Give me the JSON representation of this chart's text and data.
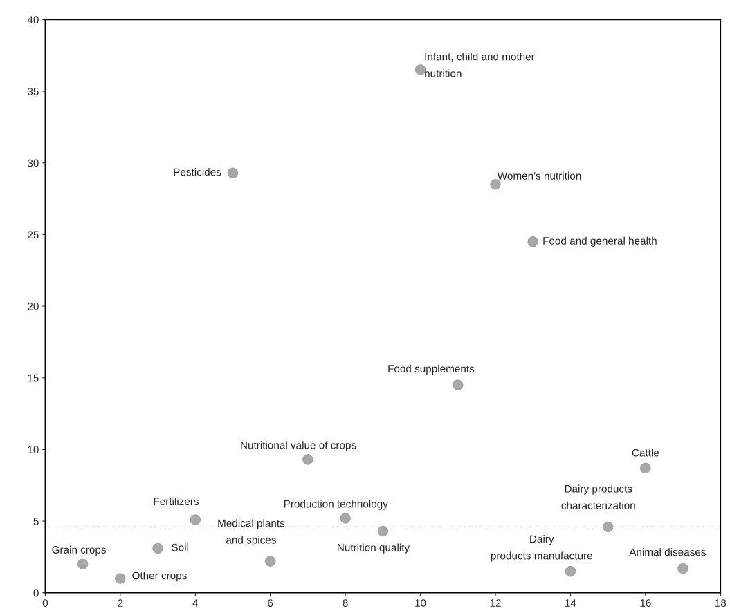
{
  "chart_data": {
    "type": "scatter",
    "x": [
      1,
      2,
      3,
      4,
      5,
      6,
      7,
      8,
      9,
      10,
      11,
      12,
      13,
      14,
      15,
      16,
      17
    ],
    "series": [
      {
        "color": "#a8a8a8",
        "values": [
          2.0,
          1.0,
          3.1,
          5.1,
          29.3,
          2.2,
          9.3,
          5.2,
          4.3,
          36.5,
          14.5,
          28.5,
          24.5,
          1.5,
          4.6,
          8.7,
          1.7
        ]
      }
    ],
    "annotations": [
      {
        "text": "Grain crops",
        "x": 1,
        "y": 2.0
      },
      {
        "text": "Other crops",
        "x": 2,
        "y": 1.0
      },
      {
        "text": "Soil",
        "x": 3,
        "y": 3.1
      },
      {
        "text": "Fertilizers",
        "x": 4,
        "y": 5.1
      },
      {
        "text": "Pesticides",
        "x": 5,
        "y": 29.3
      },
      {
        "text": "Medical plants\nand spices",
        "x": 6,
        "y": 2.2
      },
      {
        "text": "Nutritional value of crops",
        "x": 7,
        "y": 9.3
      },
      {
        "text": "Production technology",
        "x": 8,
        "y": 5.2
      },
      {
        "text": "Nutrition quality",
        "x": 9,
        "y": 4.3
      },
      {
        "text": "Infant, child and mother\nnutrition",
        "x": 10,
        "y": 36.5
      },
      {
        "text": "Food supplements",
        "x": 11,
        "y": 14.5
      },
      {
        "text": "Women's nutrition",
        "x": 12,
        "y": 28.5
      },
      {
        "text": "Food and general health",
        "x": 13,
        "y": 24.5
      },
      {
        "text": "Dairy\nproducts manufacture",
        "x": 14,
        "y": 1.5
      },
      {
        "text": "Dairy products\ncharacterization",
        "x": 15,
        "y": 4.6
      },
      {
        "text": "Cattle",
        "x": 16,
        "y": 8.7
      },
      {
        "text": "Animal diseases",
        "x": 17,
        "y": 1.7
      }
    ],
    "ref_lines": [
      {
        "axis": "y",
        "value": 4.6,
        "color": "#b0b0b0",
        "line_style": "dashed"
      }
    ],
    "xlim": [
      0,
      18
    ],
    "xticks": [
      0,
      2,
      4,
      6,
      8,
      10,
      12,
      14,
      16,
      18
    ],
    "ylim": [
      0,
      40
    ],
    "yticks": [
      0,
      5,
      10,
      15,
      20,
      25,
      30,
      35,
      40
    ],
    "marker": "circle",
    "grid": false,
    "legend": false
  }
}
